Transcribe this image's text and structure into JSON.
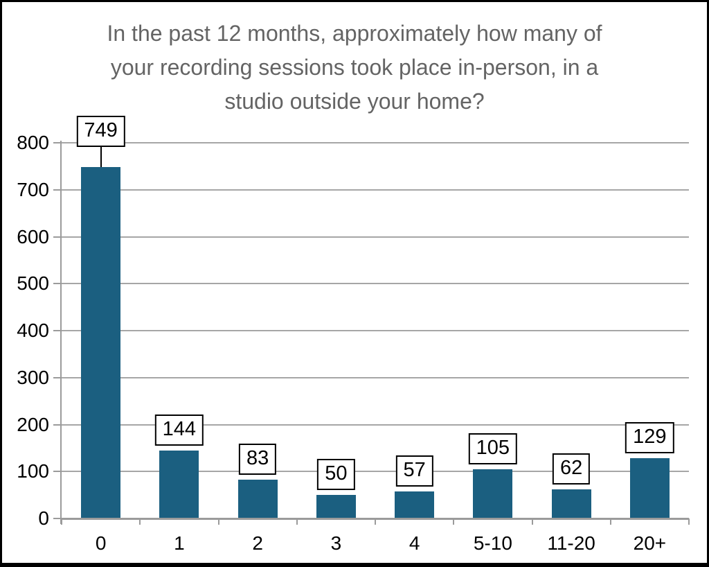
{
  "frame": {
    "background": "#ffffff",
    "border_color": "#000000"
  },
  "chart_data": {
    "type": "bar",
    "title": "In the past 12 months, approximately how many of your recording sessions took place in-person, in a studio outside your home?",
    "title_lines": [
      "In the past 12 months, approximately how many of",
      "your recording sessions took place in-person, in a",
      "studio outside your home?"
    ],
    "categories": [
      "0",
      "1",
      "2",
      "3",
      "4",
      "5-10",
      "11-20",
      "20+"
    ],
    "values": [
      749,
      144,
      83,
      50,
      57,
      105,
      62,
      129
    ],
    "data_labels": [
      "749",
      "144",
      "83",
      "50",
      "57",
      "105",
      "62",
      "129"
    ],
    "xlabel": "",
    "ylabel": "",
    "ylim": [
      0,
      800
    ],
    "yticks": [
      0,
      100,
      200,
      300,
      400,
      500,
      600,
      700,
      800
    ],
    "grid": true,
    "legend": false,
    "colors": {
      "bar": "#1B5F80",
      "gridline": "#A6A6A6",
      "axis": "#9B9B9B",
      "title_text": "#646464",
      "tick_text": "#000000",
      "label_box_bg": "#FFFFFF",
      "label_box_border": "#000000"
    }
  }
}
